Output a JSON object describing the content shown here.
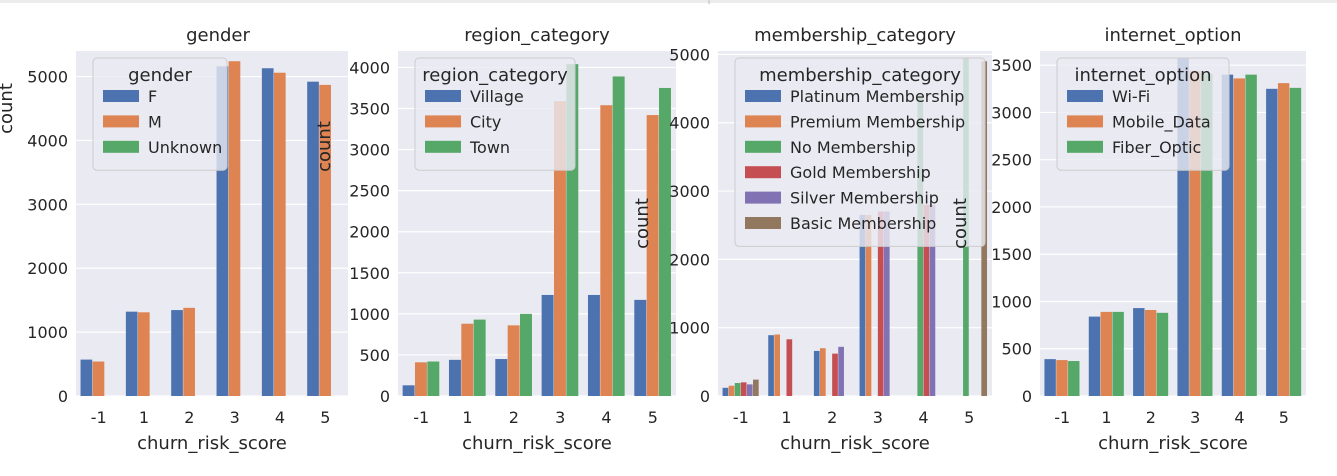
{
  "chart_data": [
    {
      "type": "bar",
      "title": "gender",
      "xlabel": "churn_risk_score",
      "ylabel": "count",
      "categories": [
        "-1",
        "1",
        "2",
        "3",
        "4",
        "5"
      ],
      "ylim": [
        0,
        5400
      ],
      "yticks": [
        0,
        1000,
        2000,
        3000,
        4000,
        5000
      ],
      "legend": {
        "title": "gender",
        "placement": "top-left"
      },
      "series": [
        {
          "name": "F",
          "color": "#4c72b0",
          "values": [
            570,
            1320,
            1345,
            5160,
            5130,
            4920
          ]
        },
        {
          "name": "M",
          "color": "#dd8452",
          "values": [
            540,
            1310,
            1380,
            5240,
            5060,
            4870
          ]
        },
        {
          "name": "Unknown",
          "color": "#55a868",
          "values": [
            0,
            0,
            0,
            0,
            0,
            0
          ]
        }
      ]
    },
    {
      "type": "bar",
      "title": "region_category",
      "xlabel": "churn_risk_score",
      "ylabel": "count",
      "categories": [
        "-1",
        "1",
        "2",
        "3",
        "4",
        "5"
      ],
      "ylim": [
        0,
        4200
      ],
      "yticks": [
        0,
        500,
        1000,
        1500,
        2000,
        2500,
        3000,
        3500,
        4000
      ],
      "legend": {
        "title": "region_category",
        "placement": "top-left"
      },
      "series": [
        {
          "name": "Village",
          "color": "#4c72b0",
          "values": [
            130,
            440,
            450,
            1230,
            1230,
            1170
          ]
        },
        {
          "name": "City",
          "color": "#dd8452",
          "values": [
            410,
            880,
            860,
            3590,
            3540,
            3420
          ]
        },
        {
          "name": "Town",
          "color": "#55a868",
          "values": [
            420,
            930,
            1000,
            4040,
            3890,
            3750
          ]
        }
      ]
    },
    {
      "type": "bar",
      "title": "membership_category",
      "xlabel": "churn_risk_score",
      "ylabel": "count",
      "categories": [
        "-1",
        "1",
        "2",
        "3",
        "4",
        "5"
      ],
      "ylim": [
        0,
        5050
      ],
      "yticks": [
        0,
        1000,
        2000,
        3000,
        4000,
        5000
      ],
      "legend": {
        "title": "membership_category",
        "placement": "top-left"
      },
      "series": [
        {
          "name": "Platinum Membership",
          "color": "#4c72b0",
          "values": [
            120,
            890,
            660,
            2650,
            0,
            0
          ]
        },
        {
          "name": "Premium Membership",
          "color": "#dd8452",
          "values": [
            150,
            900,
            700,
            2650,
            0,
            0
          ]
        },
        {
          "name": "No Membership",
          "color": "#55a868",
          "values": [
            190,
            0,
            0,
            0,
            4400,
            4950
          ]
        },
        {
          "name": "Gold Membership",
          "color": "#c44e52",
          "values": [
            200,
            830,
            620,
            2700,
            2800,
            0
          ]
        },
        {
          "name": "Silver Membership",
          "color": "#8172b3",
          "values": [
            170,
            0,
            720,
            2700,
            2800,
            0
          ]
        },
        {
          "name": "Basic Membership",
          "color": "#937860",
          "values": [
            240,
            0,
            0,
            0,
            0,
            4900
          ]
        }
      ]
    },
    {
      "type": "bar",
      "title": "internet_option",
      "xlabel": "churn_risk_score",
      "ylabel": "count",
      "categories": [
        "-1",
        "1",
        "2",
        "3",
        "4",
        "5"
      ],
      "ylim": [
        0,
        3650
      ],
      "yticks": [
        0,
        500,
        1000,
        1500,
        2000,
        2500,
        3000,
        3500
      ],
      "legend": {
        "title": "internet_option",
        "placement": "top-left"
      },
      "series": [
        {
          "name": "Wi-Fi",
          "color": "#4c72b0",
          "values": [
            390,
            840,
            930,
            3570,
            3400,
            3250
          ]
        },
        {
          "name": "Mobile_Data",
          "color": "#dd8452",
          "values": [
            380,
            890,
            910,
            3440,
            3360,
            3310
          ]
        },
        {
          "name": "Fiber_Optic",
          "color": "#55a868",
          "values": [
            370,
            890,
            880,
            3410,
            3400,
            3260
          ]
        }
      ]
    }
  ]
}
